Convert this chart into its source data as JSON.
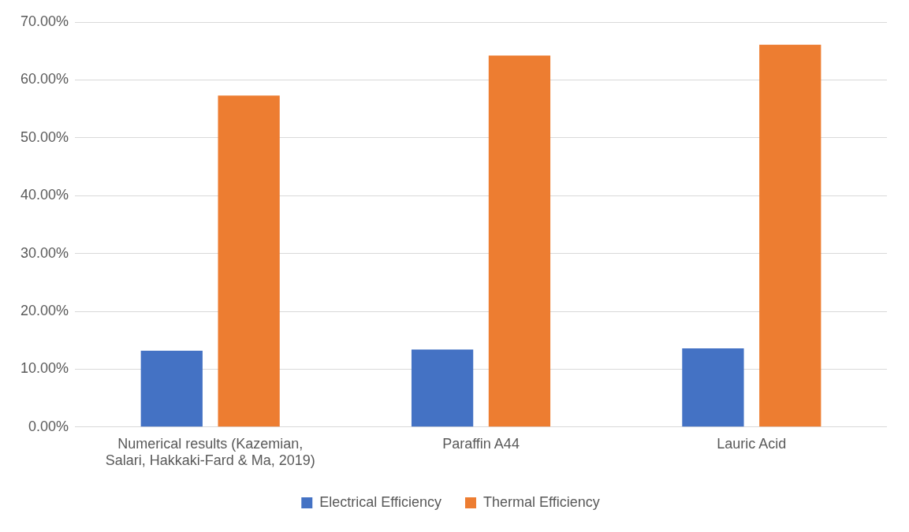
{
  "chart_data": {
    "type": "bar",
    "categories": [
      "Numerical results (Kazemian, Salari, Hakkaki-Fard & Ma, 2019)",
      "Paraffin A44",
      "Lauric Acid"
    ],
    "series": [
      {
        "name": "Electrical Efficiency",
        "color": "#4472c4",
        "values": [
          13.2,
          13.4,
          13.6
        ]
      },
      {
        "name": "Thermal Efficiency",
        "color": "#ed7d31",
        "values": [
          57.3,
          64.2,
          66.1
        ]
      }
    ],
    "ylim": [
      0,
      70
    ],
    "yticks": [
      {
        "value": 0,
        "label": "0.00%"
      },
      {
        "value": 10,
        "label": "10.00%"
      },
      {
        "value": 20,
        "label": "20.00%"
      },
      {
        "value": 30,
        "label": "30.00%"
      },
      {
        "value": 40,
        "label": "40.00%"
      },
      {
        "value": 50,
        "label": "50.00%"
      },
      {
        "value": 60,
        "label": "60.00%"
      },
      {
        "value": 70,
        "label": "70.00%"
      }
    ],
    "grid": "y",
    "legend": "bottom"
  }
}
